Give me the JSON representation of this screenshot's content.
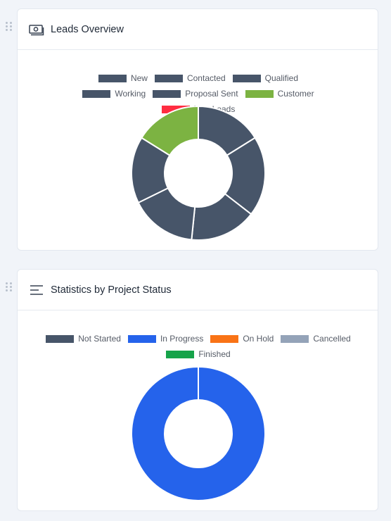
{
  "leads_overview": {
    "title": "Leads Overview",
    "icon": "money-icon",
    "chart_data": {
      "type": "pie",
      "title": "",
      "categories": [
        "New",
        "Contacted",
        "Qualified",
        "Working",
        "Proposal Sent",
        "Customer",
        "Lost Leads"
      ],
      "values": [
        15,
        18,
        15,
        15,
        15,
        15,
        0
      ],
      "colors": [
        "#475569",
        "#475569",
        "#475569",
        "#475569",
        "#475569",
        "#7cb342",
        "#ff2d41"
      ],
      "legend_position": "top",
      "donut": true
    }
  },
  "project_status": {
    "title": "Statistics by Project Status",
    "icon": "bars-icon",
    "chart_data": {
      "type": "pie",
      "title": "",
      "categories": [
        "Not Started",
        "In Progress",
        "On Hold",
        "Cancelled",
        "Finished"
      ],
      "values": [
        0,
        1,
        0,
        0,
        0
      ],
      "colors": [
        "#475569",
        "#2563eb",
        "#f97316",
        "#94a3b8",
        "#16a34a"
      ],
      "legend_position": "top",
      "donut": true
    }
  }
}
